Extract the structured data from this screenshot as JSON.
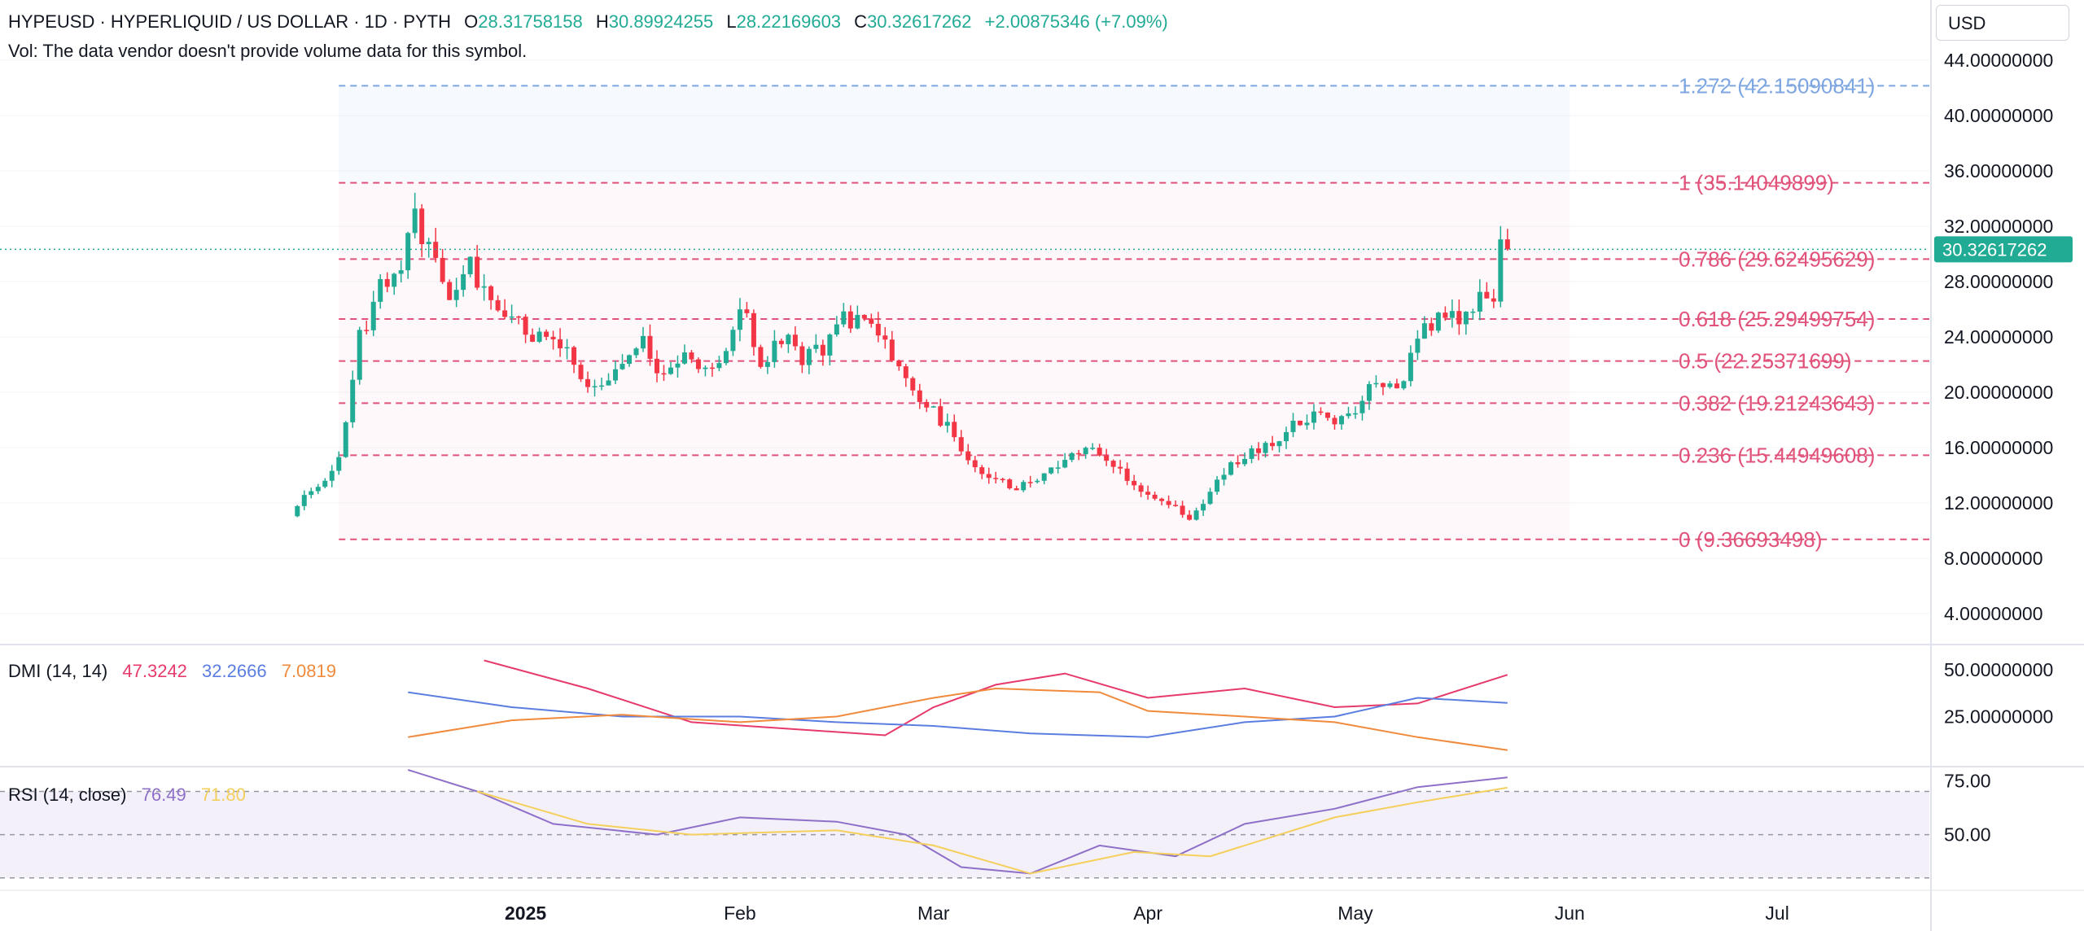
{
  "header": {
    "symbol": "HYPEUSD · HYPERLIQUID / US DOLLAR · 1D · PYTH",
    "open_label": "O",
    "open": "28.31758158",
    "high_label": "H",
    "high": "30.89924255",
    "low_label": "L",
    "low": "28.22169603",
    "close_label": "C",
    "close": "30.32617262",
    "change": "+2.00875346 (+7.09%)",
    "volume_note": "Vol: The data vendor doesn't provide volume data for this symbol."
  },
  "currency_label": "USD",
  "colors": {
    "up": "#22ab94",
    "down": "#f23645",
    "fib": "#e0527a",
    "fib_ext": "#7ea6e0",
    "dmi_plus": "#5b7de0",
    "dmi_minus": "#e63a6b",
    "adx": "#f08a3c",
    "rsi": "#8e70c9",
    "rsi_ma": "#f5cf5b"
  },
  "chart_data": [
    {
      "type": "candlestick",
      "title": "HYPEUSD · HYPERLIQUID / US DOLLAR · 1D · PYTH",
      "ylim": [
        2,
        46
      ],
      "yticks": [
        "44.00000000",
        "40.00000000",
        "36.00000000",
        "32.00000000",
        "28.00000000",
        "24.00000000",
        "20.00000000",
        "16.00000000",
        "12.00000000",
        "8.00000000",
        "4.00000000"
      ],
      "ytick_values": [
        44,
        40,
        36,
        32,
        28,
        24,
        20,
        16,
        12,
        8,
        4
      ],
      "x_tick_labels": [
        "2025",
        "Feb",
        "Mar",
        "Apr",
        "May",
        "Jun",
        "Jul"
      ],
      "x_tick_dates": [
        "2025-01-01",
        "2025-02-01",
        "2025-03-01",
        "2025-04-01",
        "2025-05-01",
        "2025-06-01",
        "2025-07-01"
      ],
      "x_range": [
        "2024-10-17",
        "2025-07-23"
      ],
      "last_price": "30.32617262",
      "last_price_value": 30.33,
      "fibonacci": [
        {
          "level": "1.272 (42.15090841)",
          "value": 42.1509
        },
        {
          "level": "1 (35.14049899)",
          "value": 35.1405
        },
        {
          "level": "0.786 (29.62495629)",
          "value": 29.625
        },
        {
          "level": "0.618 (25.29499754)",
          "value": 25.295
        },
        {
          "level": "0.5 (22.25371699)",
          "value": 22.2537
        },
        {
          "level": "0.382 (19.21243643)",
          "value": 19.2124
        },
        {
          "level": "0.236 (15.44949608)",
          "value": 15.4495
        },
        {
          "level": "0 (9.36693498)",
          "value": 9.3669
        }
      ],
      "fib_start_date": "2024-12-05",
      "fib_end_date": "2025-06-01",
      "close_series": [
        [
          "2024-11-29",
          12.0
        ],
        [
          "2024-12-03",
          13.6
        ],
        [
          "2024-12-05",
          15.0
        ],
        [
          "2024-12-08",
          24.0
        ],
        [
          "2024-12-11",
          27.5
        ],
        [
          "2024-12-14",
          29.5
        ],
        [
          "2024-12-16",
          33.0
        ],
        [
          "2024-12-18",
          30.0
        ],
        [
          "2024-12-21",
          27.0
        ],
        [
          "2024-12-24",
          29.0
        ],
        [
          "2024-12-27",
          26.5
        ],
        [
          "2024-12-30",
          25.0
        ],
        [
          "2025-01-03",
          24.0
        ],
        [
          "2025-01-06",
          23.5
        ],
        [
          "2025-01-09",
          21.0
        ],
        [
          "2025-01-12",
          20.0
        ],
        [
          "2025-01-15",
          22.0
        ],
        [
          "2025-01-18",
          23.5
        ],
        [
          "2025-01-21",
          21.0
        ],
        [
          "2025-01-24",
          23.0
        ],
        [
          "2025-01-27",
          22.0
        ],
        [
          "2025-01-30",
          23.0
        ],
        [
          "2025-02-01",
          26.5
        ],
        [
          "2025-02-04",
          22.0
        ],
        [
          "2025-02-07",
          24.0
        ],
        [
          "2025-02-10",
          22.5
        ],
        [
          "2025-02-13",
          23.0
        ],
        [
          "2025-02-16",
          25.5
        ],
        [
          "2025-02-19",
          25.0
        ],
        [
          "2025-02-22",
          23.5
        ],
        [
          "2025-02-25",
          21.5
        ],
        [
          "2025-02-28",
          19.0
        ],
        [
          "2025-03-03",
          17.5
        ],
        [
          "2025-03-06",
          15.0
        ],
        [
          "2025-03-09",
          14.0
        ],
        [
          "2025-03-12",
          13.0
        ],
        [
          "2025-03-15",
          13.5
        ],
        [
          "2025-03-18",
          14.5
        ],
        [
          "2025-03-21",
          15.5
        ],
        [
          "2025-03-24",
          16.2
        ],
        [
          "2025-03-27",
          14.5
        ],
        [
          "2025-03-30",
          13.2
        ],
        [
          "2025-04-02",
          12.5
        ],
        [
          "2025-04-05",
          11.5
        ],
        [
          "2025-04-07",
          10.5
        ],
        [
          "2025-04-10",
          12.5
        ],
        [
          "2025-04-13",
          15.0
        ],
        [
          "2025-04-16",
          15.5
        ],
        [
          "2025-04-19",
          16.5
        ],
        [
          "2025-04-22",
          17.5
        ],
        [
          "2025-04-25",
          18.5
        ],
        [
          "2025-04-28",
          18.0
        ],
        [
          "2025-05-01",
          19.0
        ],
        [
          "2025-05-04",
          20.5
        ],
        [
          "2025-05-07",
          20.0
        ],
        [
          "2025-05-10",
          24.0
        ],
        [
          "2025-05-13",
          25.5
        ],
        [
          "2025-05-16",
          25.0
        ],
        [
          "2025-05-19",
          26.5
        ],
        [
          "2025-05-22",
          27.0
        ],
        [
          "2025-05-23",
          30.33
        ]
      ]
    },
    {
      "type": "line",
      "title": "DMI (14, 14)",
      "values_shown": [
        "47.3242",
        "32.2666",
        "7.0819"
      ],
      "ylim": [
        0,
        60
      ],
      "yticks": [
        "50.00000000",
        "25.00000000"
      ],
      "ytick_values": [
        50,
        25
      ],
      "series": [
        {
          "color": "#e63a6b",
          "points": [
            [
              "2024-12-26",
              55
            ],
            [
              "2025-01-10",
              40
            ],
            [
              "2025-01-25",
              22
            ],
            [
              "2025-02-10",
              18
            ],
            [
              "2025-02-22",
              15
            ],
            [
              "2025-03-01",
              30
            ],
            [
              "2025-03-10",
              42
            ],
            [
              "2025-03-20",
              48
            ],
            [
              "2025-04-01",
              35
            ],
            [
              "2025-04-15",
              40
            ],
            [
              "2025-04-28",
              30
            ],
            [
              "2025-05-10",
              32
            ],
            [
              "2025-05-23",
              47.3
            ]
          ]
        },
        {
          "color": "#5b7de0",
          "points": [
            [
              "2024-12-15",
              38
            ],
            [
              "2024-12-30",
              30
            ],
            [
              "2025-01-15",
              25
            ],
            [
              "2025-02-01",
              25
            ],
            [
              "2025-02-15",
              22
            ],
            [
              "2025-03-01",
              20
            ],
            [
              "2025-03-15",
              16
            ],
            [
              "2025-04-01",
              14
            ],
            [
              "2025-04-15",
              22
            ],
            [
              "2025-04-28",
              25
            ],
            [
              "2025-05-10",
              35
            ],
            [
              "2025-05-23",
              32.3
            ]
          ]
        },
        {
          "color": "#f08a3c",
          "points": [
            [
              "2024-12-15",
              14
            ],
            [
              "2024-12-30",
              23
            ],
            [
              "2025-01-15",
              26
            ],
            [
              "2025-02-01",
              22
            ],
            [
              "2025-02-15",
              25
            ],
            [
              "2025-03-01",
              35
            ],
            [
              "2025-03-10",
              40
            ],
            [
              "2025-03-25",
              38
            ],
            [
              "2025-04-01",
              28
            ],
            [
              "2025-04-15",
              25
            ],
            [
              "2025-04-28",
              22
            ],
            [
              "2025-05-10",
              14
            ],
            [
              "2025-05-23",
              7.1
            ]
          ]
        }
      ]
    },
    {
      "type": "line",
      "title": "RSI (14, close)",
      "values_shown": [
        "76.49",
        "71.80"
      ],
      "ylim": [
        25,
        80
      ],
      "yticks": [
        "75.00",
        "50.00"
      ],
      "ytick_values": [
        75,
        50
      ],
      "band": [
        30,
        70
      ],
      "series": [
        {
          "color": "#8e70c9",
          "points": [
            [
              "2024-12-15",
              80
            ],
            [
              "2024-12-25",
              70
            ],
            [
              "2025-01-05",
              55
            ],
            [
              "2025-01-20",
              50
            ],
            [
              "2025-02-01",
              58
            ],
            [
              "2025-02-15",
              56
            ],
            [
              "2025-02-25",
              50
            ],
            [
              "2025-03-05",
              35
            ],
            [
              "2025-03-15",
              32
            ],
            [
              "2025-03-25",
              45
            ],
            [
              "2025-04-05",
              40
            ],
            [
              "2025-04-15",
              55
            ],
            [
              "2025-04-28",
              62
            ],
            [
              "2025-05-10",
              72
            ],
            [
              "2025-05-23",
              76.5
            ]
          ]
        },
        {
          "color": "#f5cf5b",
          "points": [
            [
              "2024-12-25",
              70
            ],
            [
              "2025-01-10",
              55
            ],
            [
              "2025-01-25",
              50
            ],
            [
              "2025-02-15",
              52
            ],
            [
              "2025-03-01",
              45
            ],
            [
              "2025-03-15",
              32
            ],
            [
              "2025-03-30",
              42
            ],
            [
              "2025-04-10",
              40
            ],
            [
              "2025-04-28",
              58
            ],
            [
              "2025-05-10",
              65
            ],
            [
              "2025-05-23",
              71.8
            ]
          ]
        }
      ]
    }
  ]
}
